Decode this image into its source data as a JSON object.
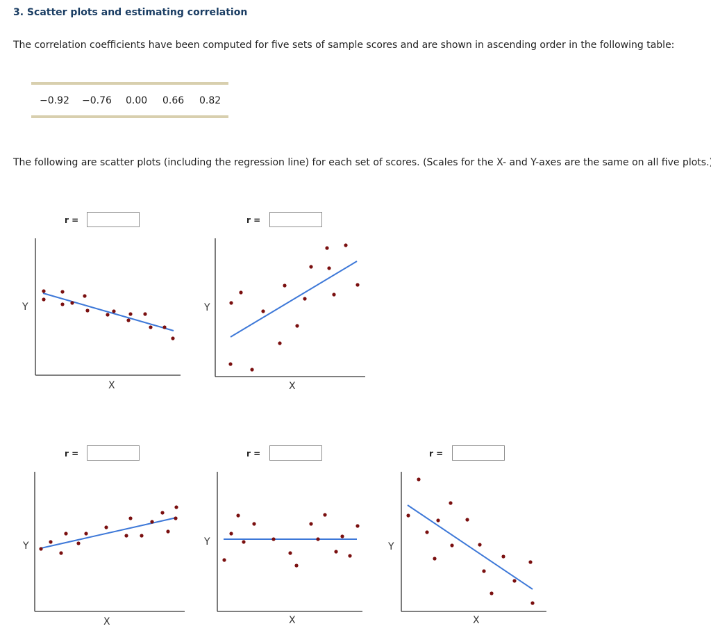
{
  "heading": "3. Scatter plots and estimating correlation",
  "intro": "The correlation coefficients have been computed for five sets of sample scores and are shown in ascending order in the following table:",
  "coefficients": [
    "−0.92",
    "−0.76",
    "0.00",
    "0.66",
    "0.82"
  ],
  "plots_intro": "The following are scatter plots (including the regression line) for each set of scores. (Scales for the X- and Y-axes are the same on all five plots.)",
  "colors": {
    "heading": "#1a3d63",
    "point": "#7a0f0f",
    "line": "#3d78d8",
    "axis": "#333333",
    "table_rule": "#d8cfae"
  },
  "plots": [
    {
      "r_label": "r =",
      "r_value": "",
      "x_label": "X",
      "y_label": "Y"
    },
    {
      "r_label": "r =",
      "r_value": "",
      "x_label": "X",
      "y_label": "Y"
    },
    {
      "r_label": "r =",
      "r_value": "",
      "x_label": "X",
      "y_label": "Y"
    },
    {
      "r_label": "r =",
      "r_value": "",
      "x_label": "X",
      "y_label": "Y"
    },
    {
      "r_label": "r =",
      "r_value": "",
      "x_label": "X",
      "y_label": "Y"
    }
  ]
}
